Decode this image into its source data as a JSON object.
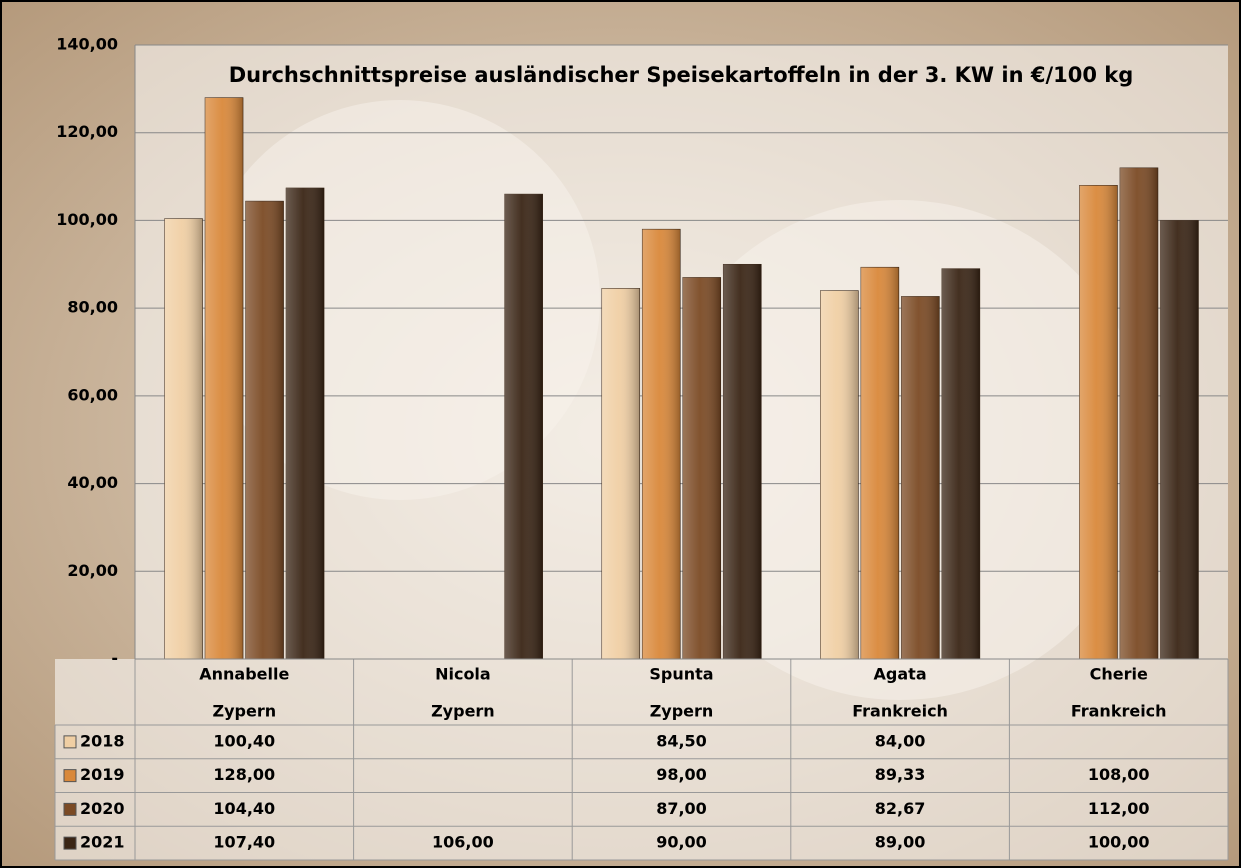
{
  "chart_data": {
    "type": "bar",
    "title": "Durchschnittspreise ausländischer Speisekartoffeln in der 3. KW in €/100 kg",
    "categories": [
      [
        "Annabelle",
        "Zypern"
      ],
      [
        "Nicola",
        "Zypern"
      ],
      [
        "Spunta",
        "Zypern"
      ],
      [
        "Agata",
        "Frankreich"
      ],
      [
        "Cherie",
        "Frankreich"
      ]
    ],
    "series": [
      {
        "name": "2018",
        "color": "#f0cfa4",
        "values": [
          100.4,
          null,
          84.5,
          84.0,
          null
        ],
        "value_labels": [
          "100,40",
          null,
          "84,50",
          "84,00",
          null
        ]
      },
      {
        "name": "2019",
        "color": "#d9883a",
        "values": [
          128.0,
          null,
          98.0,
          89.33,
          108.0
        ],
        "value_labels": [
          "128,00",
          null,
          "98,00",
          "89,33",
          "108,00"
        ]
      },
      {
        "name": "2020",
        "color": "#7b4a24",
        "values": [
          104.4,
          null,
          87.0,
          82.67,
          112.0
        ],
        "value_labels": [
          "104,40",
          null,
          "87,00",
          "82,67",
          "112,00"
        ]
      },
      {
        "name": "2021",
        "color": "#3a2515",
        "values": [
          107.4,
          106.0,
          90.0,
          89.0,
          100.0
        ],
        "value_labels": [
          "107,40",
          "106,00",
          "90,00",
          "89,00",
          "100,00"
        ]
      }
    ],
    "ylim": [
      0,
      140
    ],
    "yticks": [
      {
        "value": 0,
        "label": "-"
      },
      {
        "value": 20,
        "label": "20,00"
      },
      {
        "value": 40,
        "label": "40,00"
      },
      {
        "value": 60,
        "label": "60,00"
      },
      {
        "value": 80,
        "label": "80,00"
      },
      {
        "value": 100,
        "label": "100,00"
      },
      {
        "value": 120,
        "label": "120,00"
      },
      {
        "value": 140,
        "label": "140,00"
      }
    ],
    "grid": true
  }
}
